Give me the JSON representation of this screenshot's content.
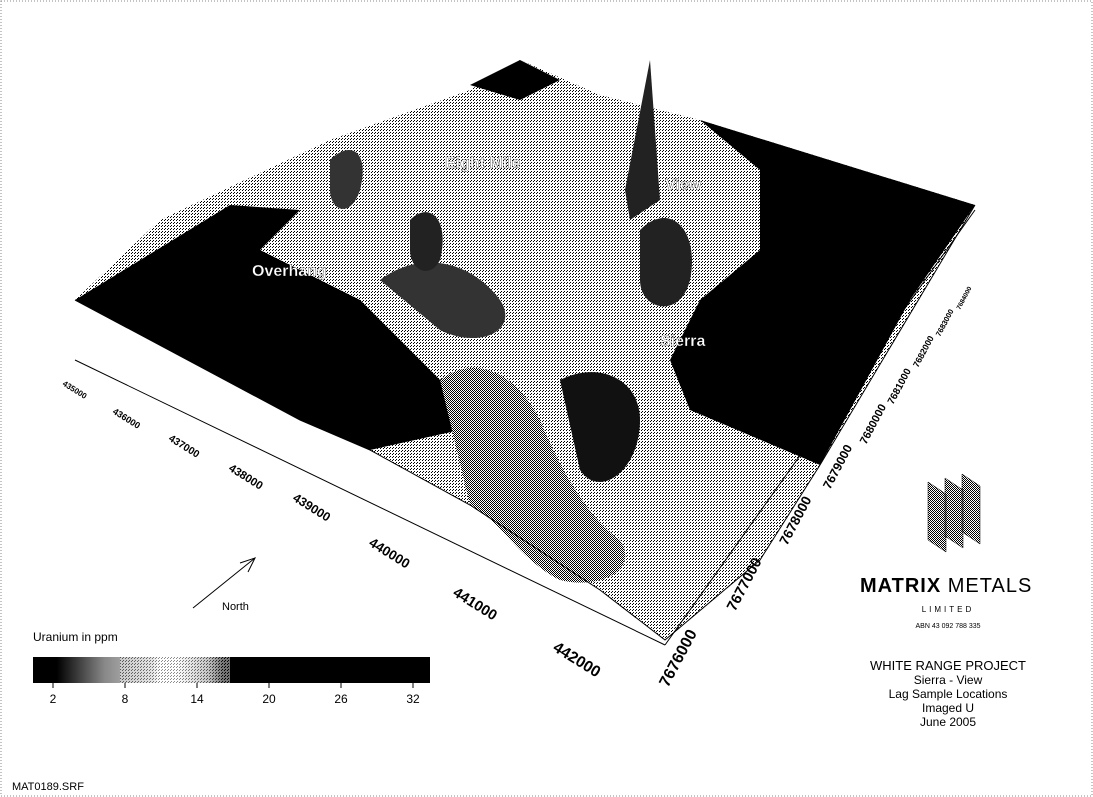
{
  "map_labels": [
    "Eight Mile",
    "View",
    "Overhang",
    "Sierra"
  ],
  "north_label": "North",
  "easting_ticks": [
    435000,
    436000,
    437000,
    438000,
    439000,
    440000,
    441000,
    442000
  ],
  "northing_ticks": [
    7676000,
    7677000,
    7678000,
    7679000,
    7680000,
    7681000,
    7682000,
    7683000,
    7684000
  ],
  "legend": {
    "title": "Uranium in ppm",
    "ticks": [
      2,
      8,
      14,
      20,
      26,
      32
    ]
  },
  "logo": {
    "name_bold": "MATRIX",
    "name": "METALS",
    "sub": "LIMITED",
    "abn": "ABN 43 092 788 335"
  },
  "title_block": [
    "WHITE RANGE PROJECT",
    "Sierra - View",
    "Lag Sample Locations",
    "Imaged U",
    "June 2005"
  ],
  "file_name": "MAT0189.SRF"
}
